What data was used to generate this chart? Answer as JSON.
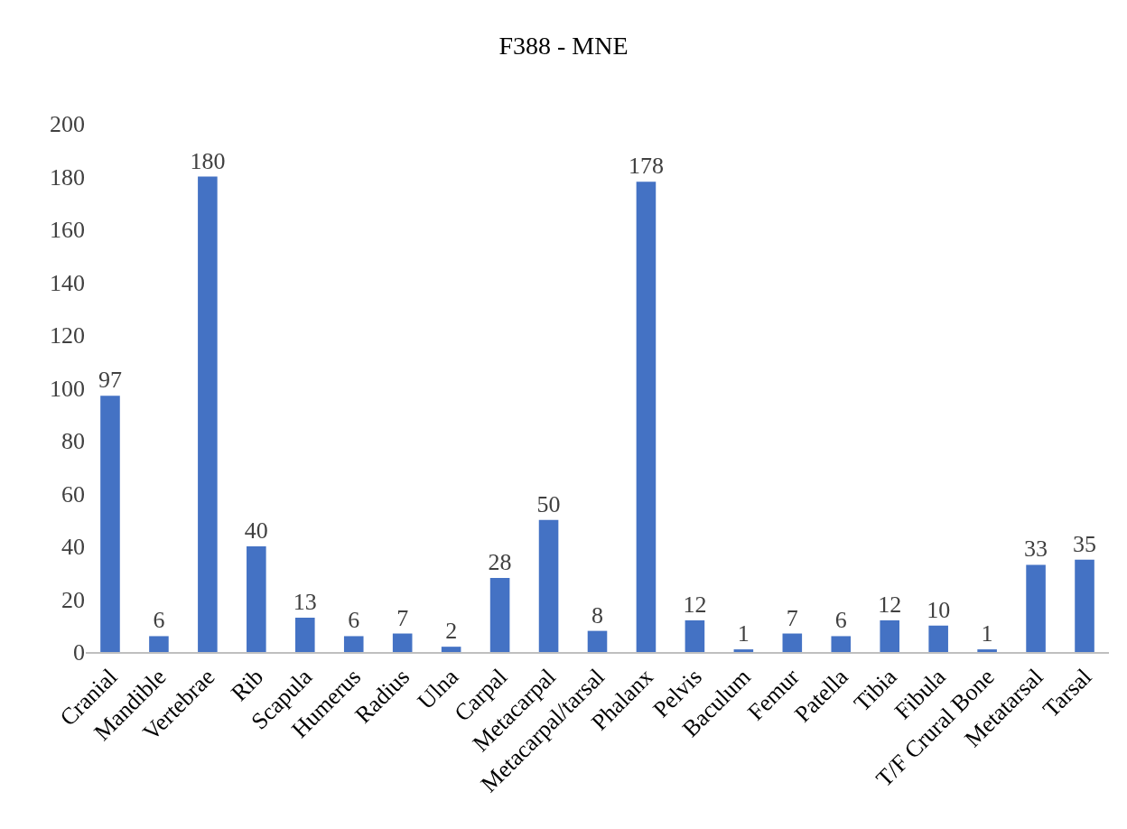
{
  "chart_data": {
    "type": "bar",
    "title": "F388 - MNE",
    "categories": [
      "Cranial",
      "Mandible",
      "Vertebrae",
      "Rib",
      "Scapula",
      "Humerus",
      "Radius",
      "Ulna",
      "Carpal",
      "Metacarpal",
      "Metacarpal/tarsal",
      "Phalanx",
      "Pelvis",
      "Baculum",
      "Femur",
      "Patella",
      "Tibia",
      "Fibula",
      "T/F Crural Bone",
      "Metatarsal",
      "Tarsal"
    ],
    "values": [
      97,
      6,
      180,
      40,
      13,
      6,
      7,
      2,
      28,
      50,
      8,
      178,
      12,
      1,
      7,
      6,
      12,
      10,
      1,
      33,
      35
    ],
    "color": "#4472c4",
    "ylim": [
      0,
      200
    ],
    "yticks": [
      0,
      20,
      40,
      60,
      80,
      100,
      120,
      140,
      160,
      180,
      200
    ],
    "grid": false,
    "data_labels": true
  }
}
